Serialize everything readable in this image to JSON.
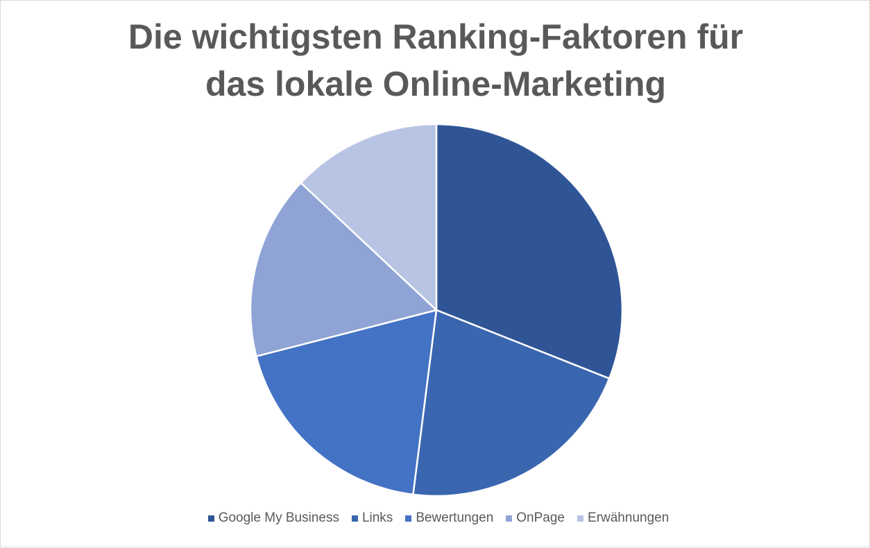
{
  "chart_data": {
    "type": "pie",
    "title_lines": [
      "Die wichtigsten Ranking-Faktoren für",
      "das lokale Online-Marketing"
    ],
    "categories": [
      "Google My Business",
      "Links",
      "Bewertungen",
      "OnPage",
      "Erwähnungen"
    ],
    "values": [
      31,
      21,
      19,
      16,
      13
    ],
    "unit": "%",
    "start_angle_deg": 0,
    "direction": "clockwise",
    "colors": [
      "#2f5597",
      "#3a66b0",
      "#4472c4",
      "#8fa3d5",
      "#b8c4e3"
    ],
    "slice_border_color": "#ffffff",
    "legend_position": "bottom"
  }
}
